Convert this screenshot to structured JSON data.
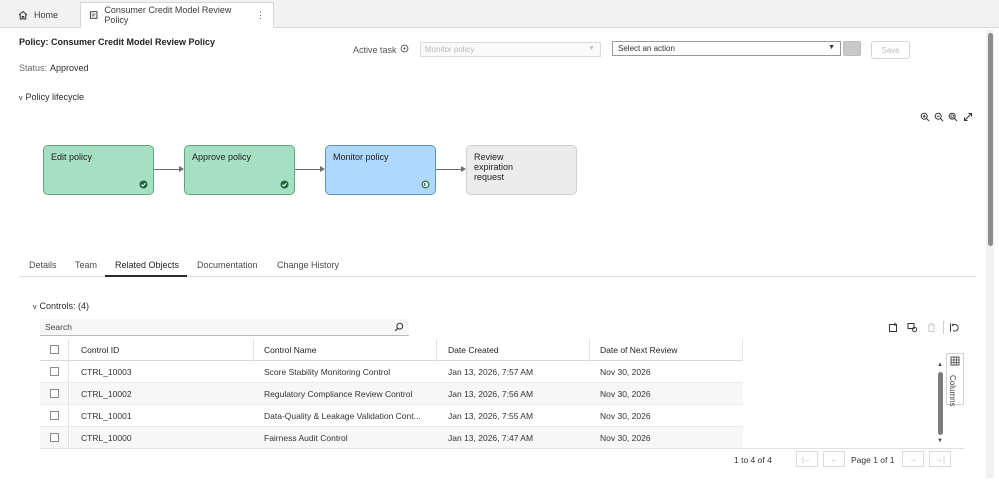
{
  "tabs": [
    {
      "label": "Home",
      "icon": "home-icon"
    },
    {
      "label": "Consumer Credit Model Review Policy",
      "icon": "policy-document-icon",
      "menu": "⋮"
    }
  ],
  "header": {
    "policy_title": "Policy: Consumer Credit Model Review Policy",
    "status_label": "Status:",
    "status_value": "Approved",
    "active_task_label": "Active task",
    "active_task_value": "Monitor policy",
    "action_placeholder": "Select an action",
    "save_label": "Save",
    "lifecycle_label": "Policy lifecycle"
  },
  "workflow": {
    "nodes": [
      {
        "label": "Edit policy",
        "state": "complete"
      },
      {
        "label": "Approve policy",
        "state": "complete"
      },
      {
        "label": "Monitor policy",
        "state": "current"
      },
      {
        "label": "Review expiration request",
        "state": "pending"
      }
    ]
  },
  "detail_tabs": [
    {
      "label": "Details"
    },
    {
      "label": "Team"
    },
    {
      "label": "Related Objects",
      "active": true
    },
    {
      "label": "Documentation"
    },
    {
      "label": "Change History"
    }
  ],
  "controls": {
    "section_label": "Controls: (4)",
    "search_placeholder": "Search",
    "columns_label": "Columns",
    "headers": [
      "Control ID",
      "Control Name",
      "Date Created",
      "Date of Next Review"
    ],
    "rows": [
      {
        "id": "CTRL_10003",
        "name": "Score Stability Monitoring Control",
        "created": "Jan 13, 2026, 7:57 AM",
        "next_review": "Nov 30, 2026"
      },
      {
        "id": "CTRL_10002",
        "name": "Regulatory Compliance Review Control",
        "created": "Jan 13, 2026, 7:56 AM",
        "next_review": "Nov 30, 2026"
      },
      {
        "id": "CTRL_10001",
        "name": "Data-Quality & Leakage Validation Cont...",
        "created": "Jan 13, 2026, 7:55 AM",
        "next_review": "Nov 30, 2026"
      },
      {
        "id": "CTRL_10000",
        "name": "Fairness Audit Control",
        "created": "Jan 13, 2026, 7:47 AM",
        "next_review": "Nov 30, 2026"
      }
    ],
    "count_text": "1 to 4 of 4",
    "page_text": "Page 1 of 1"
  },
  "colors": {
    "complete_fill": "#a6e0c3",
    "current_fill": "#afd8ff",
    "pending_fill": "#ececec"
  }
}
